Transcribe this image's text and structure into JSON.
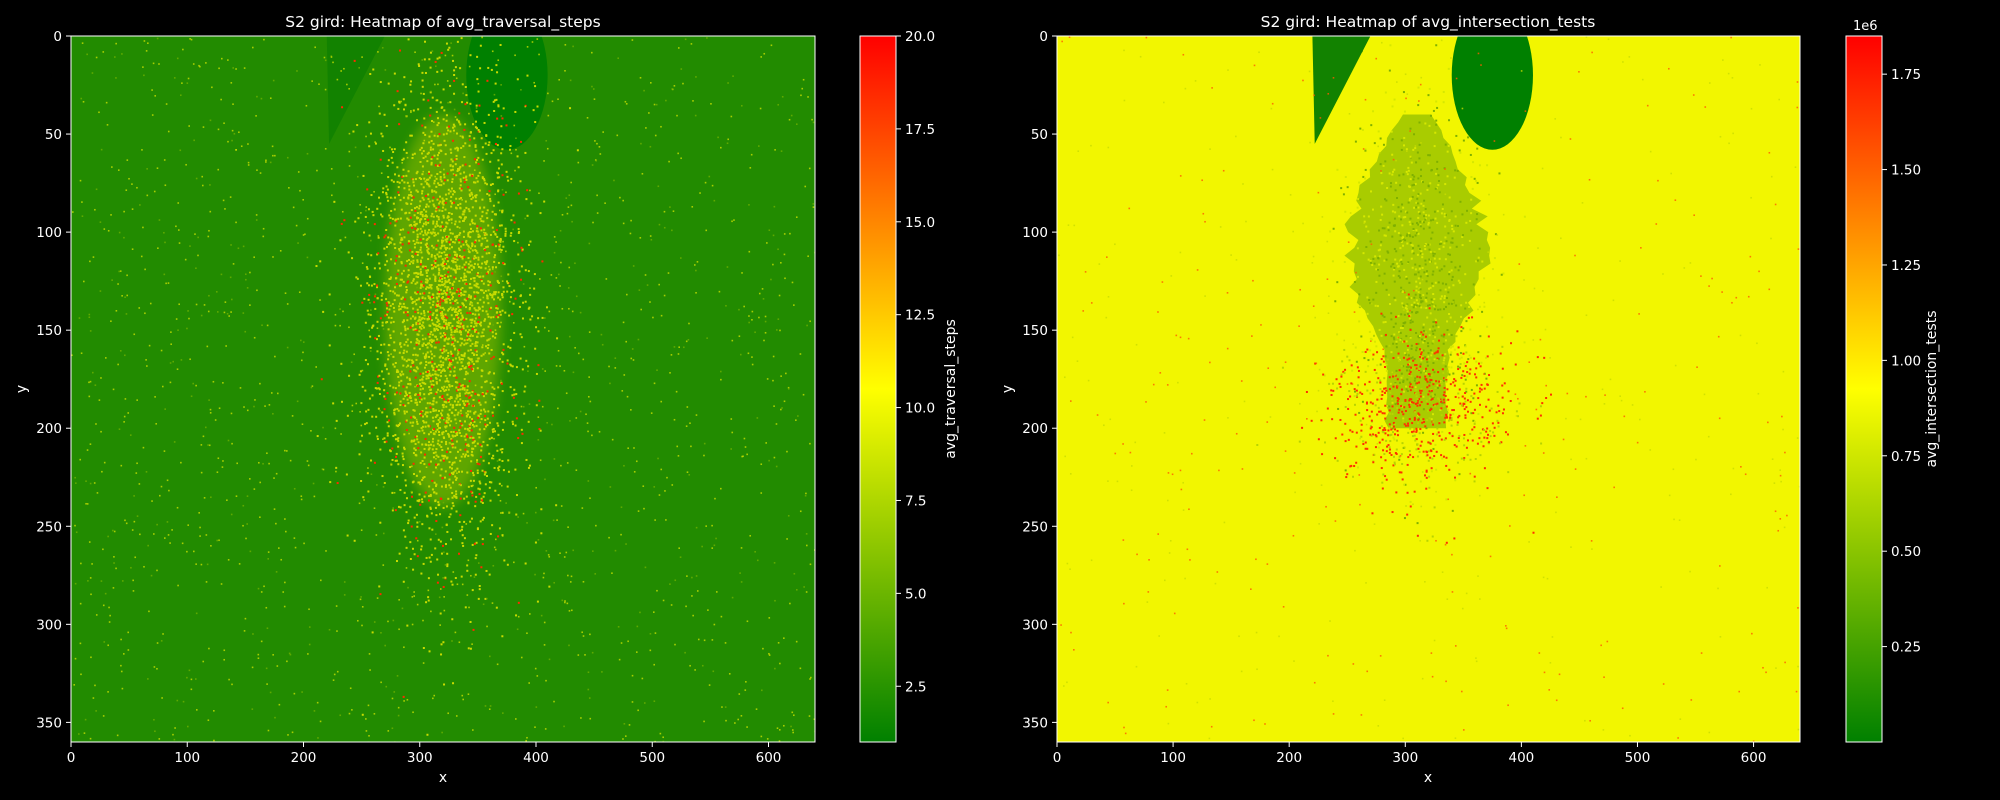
{
  "figure": {
    "background": "#000000"
  },
  "chart_data": [
    {
      "type": "heatmap",
      "title": "S2 gird: Heatmap of avg_traversal_steps",
      "xlabel": "x",
      "ylabel": "y",
      "xlim": [
        0,
        640
      ],
      "ylim": [
        360,
        0
      ],
      "xticks": [
        "0",
        "100",
        "200",
        "300",
        "400",
        "500",
        "600"
      ],
      "yticks": [
        "0",
        "50",
        "100",
        "150",
        "200",
        "250",
        "300",
        "350"
      ],
      "colorbar": {
        "label": "avg_traversal_steps",
        "range": [
          1,
          20
        ],
        "ticks": [
          "2.5",
          "5.0",
          "7.5",
          "10.0",
          "12.5",
          "15.0",
          "17.5",
          "20.0"
        ],
        "offset_text": "",
        "colormap": [
          "#008000",
          "#ffff00",
          "#ff0000"
        ]
      },
      "field": {
        "base_value": 2.0,
        "base_color": "#228b00",
        "noise_color": "#c8dc00",
        "hot_color": "#ff2a00",
        "dense_region": {
          "x_center": 320,
          "y_top": 40,
          "y_bottom": 240,
          "dominant_values": "9-12",
          "peak_values": "15-20"
        },
        "occluders": [
          {
            "shape": "triangle",
            "x_range": [
              220,
              270
            ],
            "y_range": [
              0,
              55
            ],
            "color": "#128200"
          },
          {
            "shape": "ellipse",
            "center": [
              375,
              20
            ],
            "radii": [
              35,
              38
            ],
            "color": "#008000"
          }
        ]
      }
    },
    {
      "type": "heatmap",
      "title": "S2 gird: Heatmap of avg_intersection_tests",
      "xlabel": "x",
      "ylabel": "y",
      "xlim": [
        0,
        640
      ],
      "ylim": [
        360,
        0
      ],
      "xticks": [
        "0",
        "100",
        "200",
        "300",
        "400",
        "500",
        "600"
      ],
      "yticks": [
        "0",
        "50",
        "100",
        "150",
        "200",
        "250",
        "300",
        "350"
      ],
      "colorbar": {
        "label": "avg_intersection_tests",
        "range": [
          0,
          1.85
        ],
        "ticks": [
          "0.25",
          "0.50",
          "0.75",
          "1.00",
          "1.25",
          "1.50",
          "1.75"
        ],
        "offset_text": "1e6",
        "colormap": [
          "#008000",
          "#ffff00",
          "#ff0000"
        ]
      },
      "field": {
        "base_value": 0.94,
        "base_color": "#f2f600",
        "tree_color": "#9cc400",
        "hot_color": "#ff3000",
        "dense_region": {
          "x_center": 310,
          "y_top": 40,
          "y_bottom": 200,
          "dominant_values": "0.5-0.8",
          "peak_values": "1.4-1.85"
        },
        "occluders": [
          {
            "shape": "triangle",
            "x_range": [
              220,
              270
            ],
            "y_range": [
              0,
              55
            ],
            "color": "#128200"
          },
          {
            "shape": "ellipse",
            "center": [
              375,
              20
            ],
            "radii": [
              35,
              38
            ],
            "color": "#008000"
          }
        ]
      }
    }
  ]
}
